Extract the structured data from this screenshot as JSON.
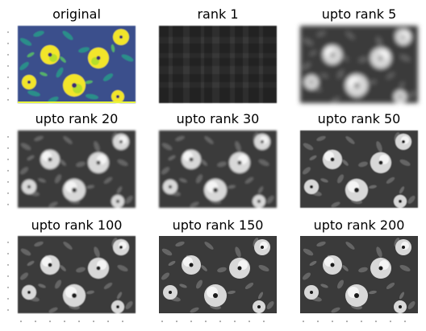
{
  "figure": {
    "panels": [
      {
        "title": "original",
        "render": "color",
        "rank": null
      },
      {
        "title": "rank 1",
        "render": "gray",
        "rank": 1
      },
      {
        "title": "upto rank 5",
        "render": "gray",
        "rank": 5
      },
      {
        "title": "upto rank 20",
        "render": "gray",
        "rank": 20
      },
      {
        "title": "upto rank 30",
        "render": "gray",
        "rank": 30
      },
      {
        "title": "upto rank 50",
        "render": "gray",
        "rank": 50
      },
      {
        "title": "upto rank 100",
        "render": "gray",
        "rank": 100
      },
      {
        "title": "upto rank 150",
        "render": "gray",
        "rank": 150
      },
      {
        "title": "upto rank 200",
        "render": "gray",
        "rank": 200
      }
    ],
    "colors": {
      "viridis_dark": "#3b2a73",
      "viridis_mid": "#2a9a8a",
      "viridis_light": "#f2e52a"
    }
  },
  "chart_data": {
    "type": "image-grid",
    "description_in_pixels": "3x3 grid of image panels (SVD low-rank approximations)",
    "ranks": [
      1,
      5,
      20,
      30,
      50,
      100,
      150,
      200
    ]
  }
}
